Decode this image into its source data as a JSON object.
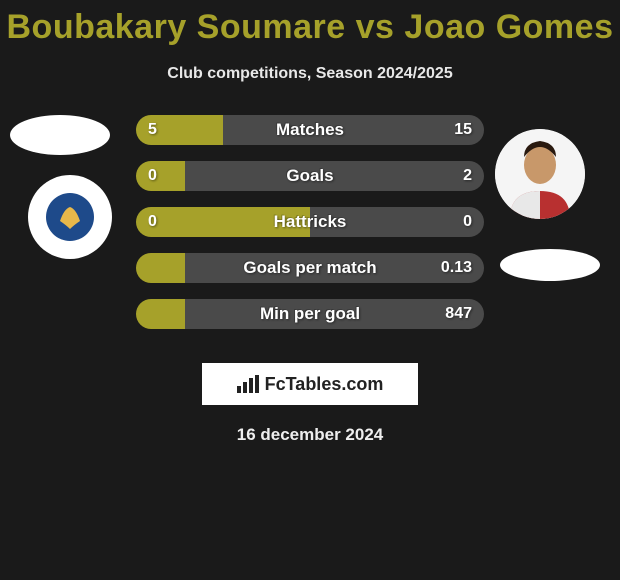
{
  "title": {
    "player1": "Boubakary Soumare",
    "vs": "vs",
    "player2": "Joao Gomes",
    "color": "#a6a12a"
  },
  "subtitle": "Club competitions, Season 2024/2025",
  "colors": {
    "player1_bar": "#a6a12a",
    "player2_bar": "#4a4a4a",
    "background": "#1a1a1a"
  },
  "bars": [
    {
      "label": "Matches",
      "left": "5",
      "right": "15",
      "left_pct": 25,
      "right_pct": 75
    },
    {
      "label": "Goals",
      "left": "0",
      "right": "2",
      "left_pct": 14,
      "right_pct": 86
    },
    {
      "label": "Hattricks",
      "left": "0",
      "right": "0",
      "left_pct": 50,
      "right_pct": 50
    },
    {
      "label": "Goals per match",
      "left": "",
      "right": "0.13",
      "left_pct": 14,
      "right_pct": 86
    },
    {
      "label": "Min per goal",
      "left": "",
      "right": "847",
      "left_pct": 14,
      "right_pct": 86
    }
  ],
  "footer_brand": "FcTables.com",
  "date": "16 december 2024",
  "clubs": {
    "left": "Leicester City Football Club",
    "right": ""
  }
}
